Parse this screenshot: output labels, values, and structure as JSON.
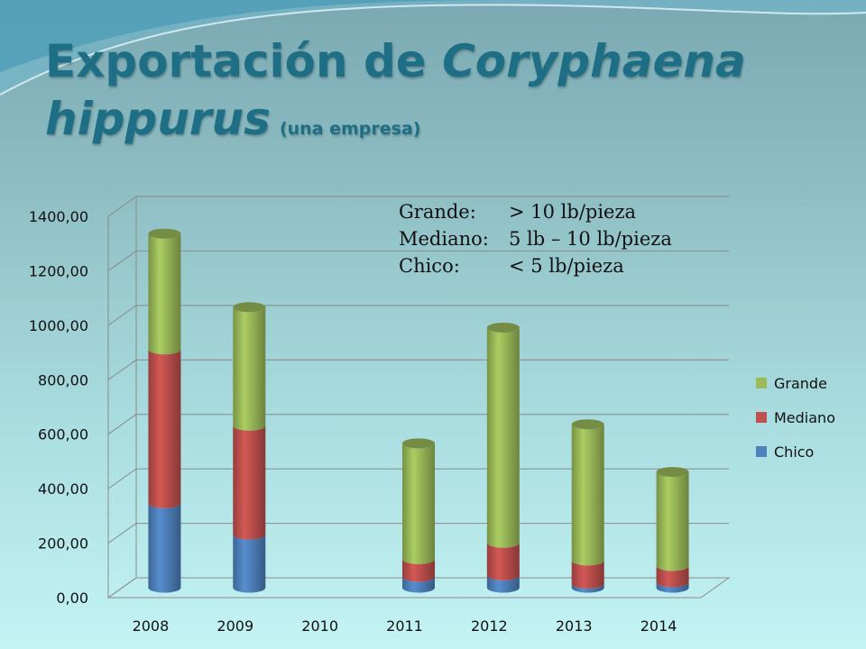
{
  "slide": {
    "title_part1": "Exportación de ",
    "title_italic1": "Coryphaena",
    "title_italic2": "hippurus",
    "title_sub": "(una empresa)"
  },
  "note": {
    "lines": [
      {
        "key": "Grande:",
        "value": "> 10 lb/pieza"
      },
      {
        "key": "Mediano:",
        "value": "5 lb – 10 lb/pieza"
      },
      {
        "key": "Chico:",
        "value": "< 5 lb/pieza"
      }
    ]
  },
  "chart_data": {
    "type": "bar",
    "stacked": true,
    "categories": [
      "2008",
      "2009",
      "2010",
      "2011",
      "2012",
      "2013",
      "2014"
    ],
    "series": [
      {
        "name": "Chico",
        "color": "#4f81bd",
        "values": [
          310,
          195,
          0,
          40,
          45,
          15,
          20
        ]
      },
      {
        "name": "Mediano",
        "color": "#c0504d",
        "values": [
          565,
          400,
          0,
          65,
          120,
          85,
          60
        ]
      },
      {
        "name": "Grande",
        "color": "#9bbb59",
        "values": [
          425,
          435,
          0,
          425,
          790,
          500,
          345
        ]
      }
    ],
    "ylim": [
      0,
      1400
    ],
    "yticks": [
      "0,00",
      "200,00",
      "400,00",
      "600,00",
      "800,00",
      "1000,00",
      "1200,00",
      "1400,00"
    ],
    "grid": true,
    "legend_position": "right"
  }
}
